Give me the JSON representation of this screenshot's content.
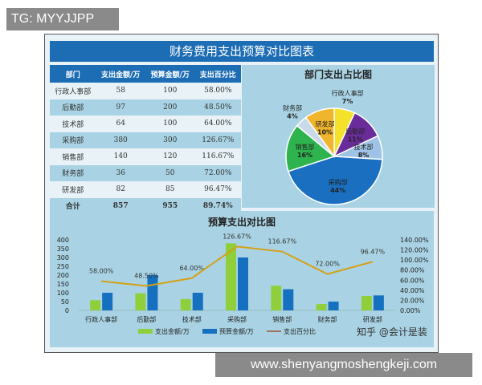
{
  "tag": "TG: MYYJJPP",
  "footer": "www.shenyangmoshengkeji.com",
  "watermark": "知乎 @会计是装",
  "title": "财务费用支出预算对比图表",
  "table": {
    "headers": [
      "部门",
      "支出金额/万",
      "预算金额/万",
      "支出百分比"
    ],
    "rows": [
      [
        "行政人事部",
        "58",
        "100",
        "58.00%"
      ],
      [
        "后勤部",
        "97",
        "200",
        "48.50%"
      ],
      [
        "技术部",
        "64",
        "100",
        "64.00%"
      ],
      [
        "采购部",
        "380",
        "300",
        "126.67%"
      ],
      [
        "销售部",
        "140",
        "120",
        "116.67%"
      ],
      [
        "财务部",
        "36",
        "50",
        "72.00%"
      ],
      [
        "研发部",
        "82",
        "85",
        "96.47%"
      ]
    ],
    "total": [
      "合计",
      "857",
      "955",
      "89.74%"
    ]
  },
  "chart_data": [
    {
      "type": "pie",
      "title": "部门支出占比图",
      "slices": [
        {
          "label": "行政人事部",
          "value": 7,
          "color": "#f3e12a"
        },
        {
          "label": "后勤部",
          "value": 11,
          "color": "#6a2c9a"
        },
        {
          "label": "技术部",
          "value": 8,
          "color": "#9ec3e6"
        },
        {
          "label": "采购部",
          "value": 44,
          "color": "#1a6fc0"
        },
        {
          "label": "销售部",
          "value": 16,
          "color": "#2fb34e"
        },
        {
          "label": "财务部",
          "value": 4,
          "color": "#c9d9e8"
        },
        {
          "label": "研发部",
          "value": 10,
          "color": "#f0b52c"
        }
      ]
    },
    {
      "type": "bar",
      "title": "预算支出对比图",
      "categories": [
        "行政人事部",
        "后勤部",
        "技术部",
        "采购部",
        "销售部",
        "财务部",
        "研发部"
      ],
      "series": [
        {
          "name": "支出金额/万",
          "type": "bar",
          "values": [
            58,
            97,
            64,
            380,
            140,
            36,
            82
          ],
          "color": "#8fcf3c"
        },
        {
          "name": "预算金额/万",
          "type": "bar",
          "values": [
            100,
            200,
            100,
            300,
            120,
            50,
            85
          ],
          "color": "#1570c0"
        },
        {
          "name": "支出百分比",
          "type": "line",
          "axis": "right",
          "values": [
            58.0,
            48.5,
            64.0,
            126.67,
            116.67,
            72.0,
            96.47
          ],
          "labels": [
            "58.00%",
            "48.50%",
            "64.00%",
            "126.67%",
            "116.67%",
            "72.00%",
            "96.47%"
          ],
          "color": "#d4a017"
        }
      ],
      "ylim": [
        0,
        400
      ],
      "yticks": [
        "0",
        "50",
        "100",
        "150",
        "200",
        "250",
        "300",
        "350",
        "400"
      ],
      "y2lim": [
        0,
        140
      ],
      "y2ticks": [
        "0.00%",
        "20.00%",
        "40.00%",
        "60.00%",
        "80.00%",
        "100.00%",
        "120.00%",
        "140.00%"
      ],
      "legend": "bottom"
    }
  ]
}
